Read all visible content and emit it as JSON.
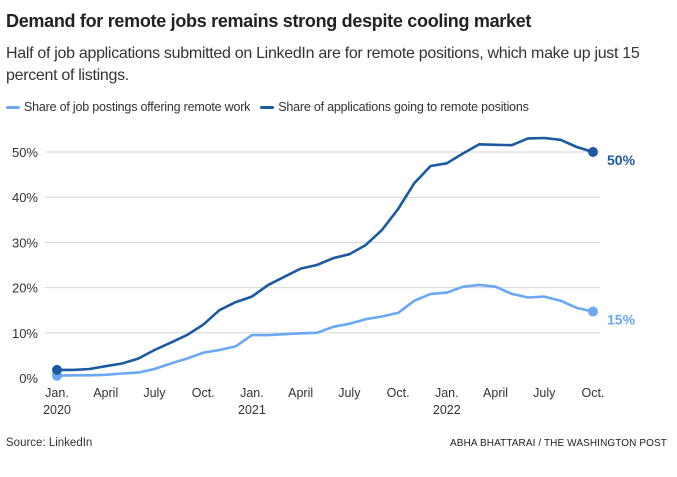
{
  "header": {
    "title": "Demand for remote jobs remains strong despite cooling market",
    "subtitle": "Half of job applications submitted on LinkedIn are for remote positions, which make up just 15 percent of listings."
  },
  "footer": {
    "source": "Source: LinkedIn",
    "credit": "ABHA BHATTARAI / THE WASHINGTON POST"
  },
  "chart_data": {
    "type": "line",
    "title": "Demand for remote jobs remains strong despite cooling market",
    "xlabel": "",
    "ylabel": "",
    "x_start": "Jan. 2020",
    "x_end": "Oct. 2022",
    "x_unit": "month",
    "ylim": [
      0,
      50
    ],
    "yticks": [
      0,
      10,
      20,
      30,
      40,
      50
    ],
    "ytick_labels": [
      "0%",
      "10%",
      "20%",
      "30%",
      "40%",
      "50%"
    ],
    "xticks": [
      {
        "month": 0,
        "label": "Jan.",
        "year": "2020"
      },
      {
        "month": 3,
        "label": "April",
        "year": ""
      },
      {
        "month": 6,
        "label": "July",
        "year": ""
      },
      {
        "month": 9,
        "label": "Oct.",
        "year": ""
      },
      {
        "month": 12,
        "label": "Jan.",
        "year": "2021"
      },
      {
        "month": 15,
        "label": "April",
        "year": ""
      },
      {
        "month": 18,
        "label": "July",
        "year": ""
      },
      {
        "month": 21,
        "label": "Oct.",
        "year": ""
      },
      {
        "month": 24,
        "label": "Jan.",
        "year": "2022"
      },
      {
        "month": 27,
        "label": "April",
        "year": ""
      },
      {
        "month": 30,
        "label": "July",
        "year": ""
      },
      {
        "month": 33,
        "label": "Oct.",
        "year": ""
      }
    ],
    "grid": true,
    "legend_position": "top-left",
    "series": [
      {
        "name": "Share of job postings offering remote work",
        "color": "#6aa8f5",
        "end_label": "15%",
        "values": [
          0.5,
          0.6,
          0.6,
          0.7,
          1.0,
          1.2,
          2.0,
          3.2,
          4.3,
          5.6,
          6.2,
          7.0,
          9.5,
          9.5,
          9.7,
          9.9,
          10.0,
          11.3,
          12.0,
          13.0,
          13.6,
          14.4,
          17.1,
          18.6,
          18.9,
          20.2,
          20.6,
          20.2,
          18.6,
          17.8,
          18.0,
          17.1,
          15.5,
          14.7
        ]
      },
      {
        "name": "Share of applications going to remote positions",
        "color": "#1b5aa0",
        "end_label": "50%",
        "values": [
          1.8,
          1.8,
          2.0,
          2.6,
          3.2,
          4.3,
          6.2,
          7.8,
          9.5,
          11.8,
          15.0,
          16.8,
          18.0,
          20.6,
          22.4,
          24.2,
          25.0,
          26.5,
          27.4,
          29.4,
          32.7,
          37.4,
          43.1,
          46.9,
          47.5,
          49.7,
          51.7,
          51.6,
          51.5,
          53.0,
          53.1,
          52.7,
          51.1,
          50.0
        ]
      }
    ]
  }
}
